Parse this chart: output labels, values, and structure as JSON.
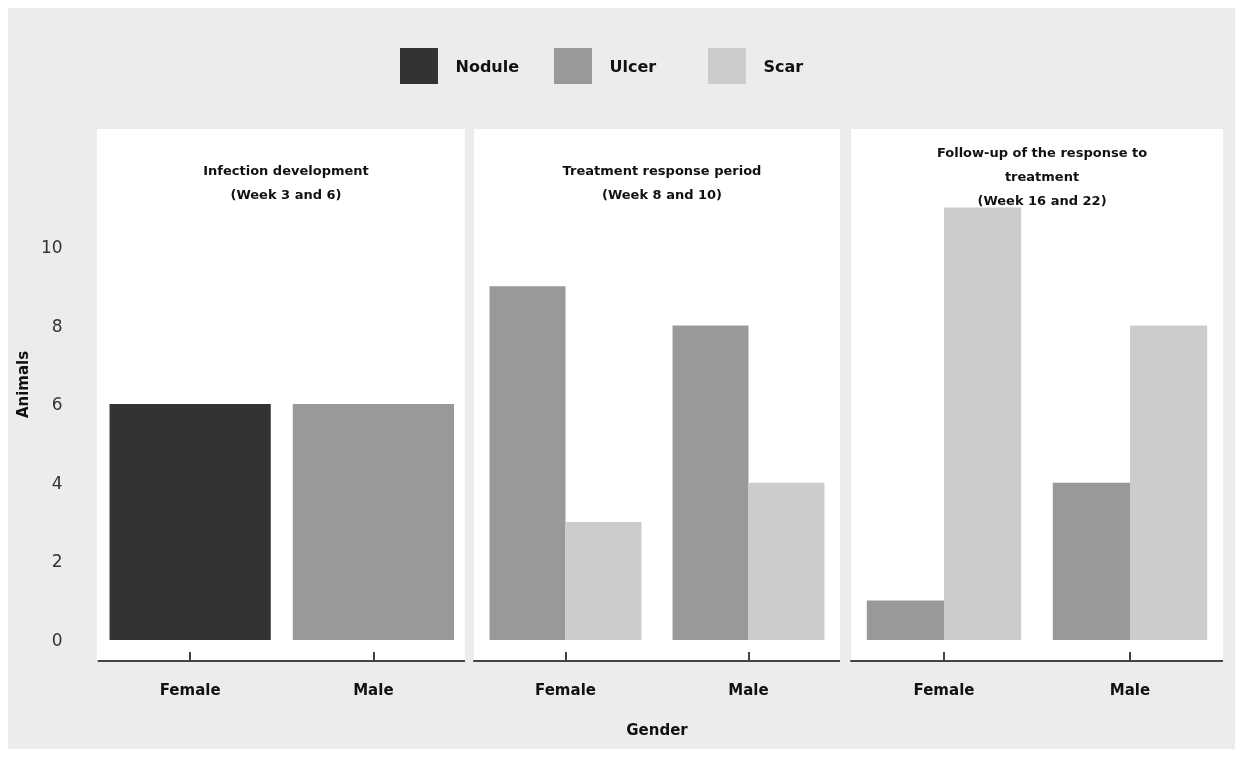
{
  "chart_data": [
    {
      "type": "bar",
      "title": "Infection development\n(Week 3 and 6)",
      "ylabel": "Animals",
      "categories": [
        "Female",
        "Male"
      ],
      "legend": "top",
      "ylim": [
        0,
        13
      ],
      "yticks": [
        0,
        2,
        4,
        6,
        8,
        10
      ],
      "series": [
        {
          "name": "Nodule",
          "color": "#333333",
          "values": [
            6,
            null
          ]
        },
        {
          "name": "Ulcer",
          "color": "#999999",
          "values": [
            null,
            6
          ]
        }
      ]
    },
    {
      "type": "bar",
      "title": "Treatment response period\n(Week 8 and 10)",
      "xlabel": "Gender",
      "categories": [
        "Female",
        "Male"
      ],
      "ylim": [
        0,
        13
      ],
      "yticks": [
        0,
        2,
        4,
        6,
        8,
        10
      ],
      "tick_labels": "x",
      "series": [
        {
          "name": "Ulcer",
          "color": "#999999",
          "values": [
            9,
            8
          ]
        },
        {
          "name": "Scar",
          "color": "#cccccc",
          "values": [
            3,
            4
          ]
        }
      ]
    },
    {
      "type": "bar",
      "title": "Follow-up of the response to\ntreatment\n(Week 16 and 22)",
      "categories": [
        "Female",
        "Male"
      ],
      "ylim": [
        0,
        13
      ],
      "yticks": [
        0,
        2,
        4,
        6,
        8,
        10
      ],
      "tick_labels": "x",
      "series": [
        {
          "name": "Ulcer",
          "color": "#999999",
          "values": [
            1,
            4
          ]
        },
        {
          "name": "Scar",
          "color": "#cccccc",
          "values": [
            11,
            8
          ]
        }
      ]
    }
  ]
}
